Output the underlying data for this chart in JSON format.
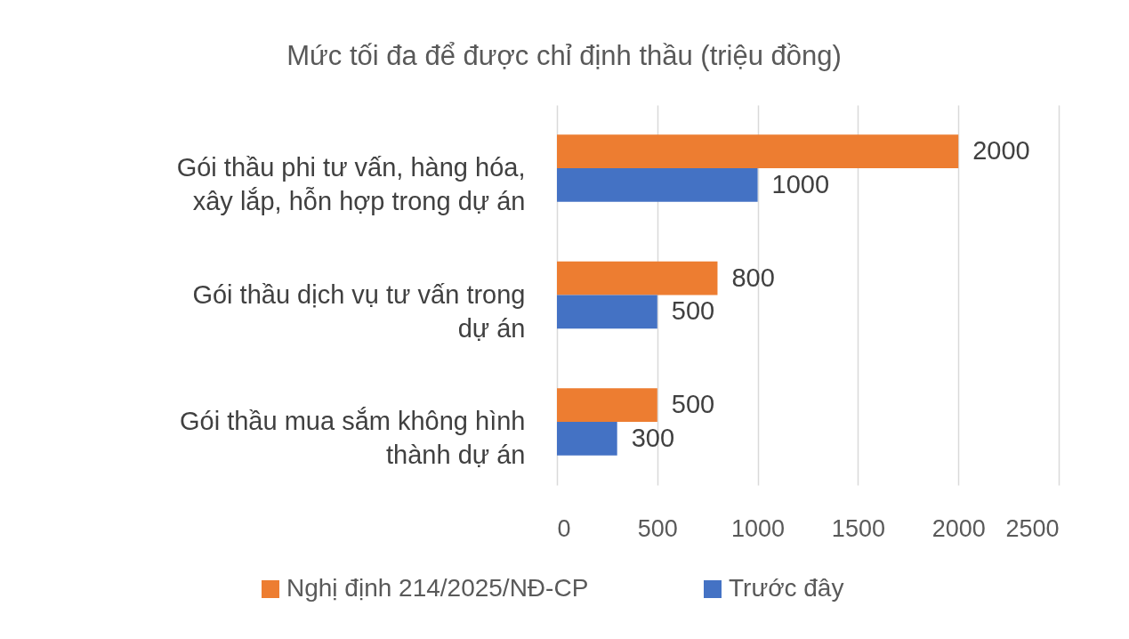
{
  "chart_data": {
    "type": "bar",
    "orientation": "horizontal",
    "title": "Mức tối đa để được chỉ định thầu (triệu đồng)",
    "categories": [
      "Gói thầu phi tư vấn, hàng hóa, xây lắp, hỗn hợp trong dự án",
      "Gói thầu dịch vụ tư vấn trong dự án",
      "Gói thầu mua sắm không hình thành dự án"
    ],
    "series": [
      {
        "name": "Nghị định 214/2025/NĐ-CP",
        "color": "#ed7d31",
        "values": [
          2000,
          800,
          500
        ]
      },
      {
        "name": "Trước đây",
        "color": "#4472c4",
        "values": [
          1000,
          500,
          300
        ]
      }
    ],
    "xlim": [
      0,
      2500
    ],
    "xticks": [
      0,
      500,
      1000,
      1500,
      2000,
      2500
    ],
    "grid": "x",
    "legend": "bottom",
    "data_labels": true
  }
}
